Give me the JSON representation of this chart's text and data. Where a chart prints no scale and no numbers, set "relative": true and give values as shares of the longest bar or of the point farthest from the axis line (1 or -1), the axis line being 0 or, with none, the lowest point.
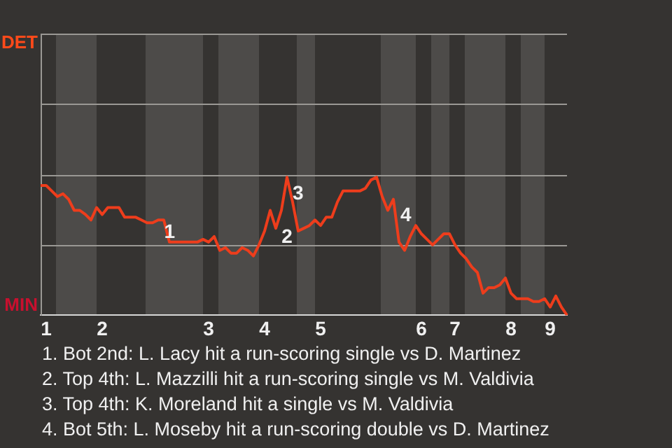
{
  "chart_data": {
    "type": "line",
    "relative": true,
    "categories": [
      null,
      "1",
      null,
      null,
      null,
      null,
      null,
      null,
      null,
      null,
      null,
      "2",
      null,
      null,
      null,
      null,
      null,
      null,
      null,
      null,
      null,
      null,
      null,
      null,
      null,
      null,
      null,
      null,
      null,
      null,
      "3",
      null,
      null,
      null,
      null,
      null,
      null,
      null,
      null,
      null,
      "4",
      null,
      null,
      null,
      null,
      null,
      null,
      null,
      null,
      null,
      "5",
      null,
      null,
      null,
      null,
      null,
      null,
      null,
      null,
      null,
      null,
      null,
      null,
      null,
      null,
      null,
      null,
      null,
      "6",
      null,
      null,
      null,
      null,
      null,
      "7",
      null,
      null,
      null,
      null,
      null,
      null,
      null,
      null,
      null,
      "8",
      null,
      null,
      null,
      null,
      null,
      null,
      "9",
      null,
      null,
      null
    ],
    "series": [
      {
        "color": "#ee3d1c",
        "values": [
          0.94,
          0.94,
          0.9,
          0.86,
          0.88,
          0.84,
          0.76,
          0.76,
          0.73,
          0.69,
          0.78,
          0.73,
          0.78,
          0.78,
          0.78,
          0.71,
          0.71,
          0.71,
          0.69,
          0.67,
          0.67,
          0.69,
          0.69,
          0.53,
          0.53,
          0.53,
          0.53,
          0.53,
          0.53,
          0.55,
          0.53,
          0.57,
          0.47,
          0.49,
          0.45,
          0.45,
          0.49,
          0.47,
          0.43,
          0.51,
          0.61,
          0.76,
          0.63,
          0.76,
          1,
          0.82,
          0.61,
          0.63,
          0.65,
          0.69,
          0.65,
          0.71,
          0.71,
          0.82,
          0.9,
          0.9,
          0.9,
          0.9,
          0.92,
          0.98,
          1,
          0.86,
          0.76,
          0.84,
          0.53,
          0.47,
          0.57,
          0.65,
          0.59,
          0.55,
          0.51,
          0.55,
          0.59,
          0.59,
          0.51,
          0.45,
          0.41,
          0.35,
          0.31,
          0.16,
          0.2,
          0.2,
          0.22,
          0.27,
          0.16,
          0.12,
          0.12,
          0.12,
          0.1,
          0.1,
          0.12,
          0.06,
          0.14,
          0.06,
          0
        ]
      }
    ],
    "marker": "none",
    "line_style": "solid",
    "ref_lines": [
      {
        "axis": "y",
        "value": 0.51,
        "color": "#9a9894"
      },
      {
        "axis": "y",
        "value": 1.02,
        "color": "#9a9894"
      },
      {
        "axis": "y",
        "value": 1.53,
        "color": "#9a9894"
      },
      {
        "axis": "y",
        "value": 2.04,
        "color": "#9a9894"
      }
    ],
    "annotations": [
      "DET",
      "MIN",
      "1",
      "2",
      "3",
      "4",
      "1. Bot 2nd: L. Lacy hit a run-scoring single vs D. Martinez",
      "2. Top 4th: L. Mazzilli hit a run-scoring single vs M. Valdivia",
      "3. Top 4th: K. Moreland hit a single vs M. Valdivia",
      "4. Bot 5th: L. Moseby hit a run-scoring double vs D. Martinez"
    ]
  }
}
